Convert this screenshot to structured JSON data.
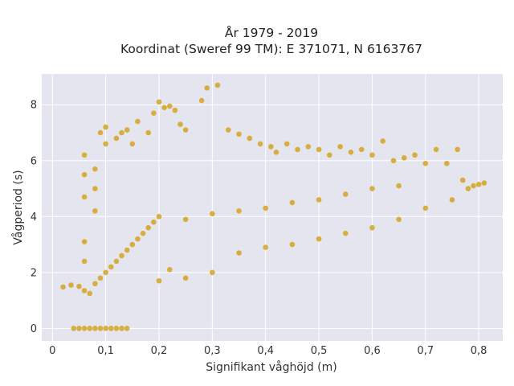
{
  "chart_data": {
    "type": "scatter",
    "title": "År 1979 - 2019",
    "subtitle": "Koordinat (Sweref 99 TM): E 371071, N 6163767",
    "xlabel": "Signifikant våghöjd (m)",
    "ylabel": "Vågperiod (s)",
    "xlim": [
      -0.02,
      0.845
    ],
    "ylim": [
      -0.45,
      9.1
    ],
    "x_ticks": [
      0,
      0.1,
      0.2,
      0.3,
      0.4,
      0.5,
      0.6,
      0.7,
      0.8
    ],
    "x_tick_labels": [
      "0",
      "0,1",
      "0,2",
      "0,3",
      "0,4",
      "0,5",
      "0,6",
      "0,7",
      "0,8"
    ],
    "y_ticks": [
      0,
      2,
      4,
      6,
      8
    ],
    "y_tick_labels": [
      "0",
      "2",
      "4",
      "6",
      "8"
    ],
    "grid": true,
    "background": "#e5e5f0",
    "marker_color": "#d4a520",
    "series": [
      {
        "points": [
          [
            0.02,
            1.48
          ],
          [
            0.035,
            1.55
          ],
          [
            0.05,
            1.5
          ],
          [
            0.06,
            1.35
          ],
          [
            0.07,
            1.25
          ],
          [
            0.08,
            1.6
          ],
          [
            0.09,
            1.8
          ],
          [
            0.1,
            2.0
          ],
          [
            0.11,
            2.2
          ],
          [
            0.12,
            2.4
          ],
          [
            0.13,
            2.6
          ],
          [
            0.14,
            2.8
          ],
          [
            0.15,
            3.0
          ],
          [
            0.16,
            3.2
          ],
          [
            0.17,
            3.4
          ],
          [
            0.18,
            3.6
          ],
          [
            0.19,
            3.8
          ],
          [
            0.2,
            4.0
          ],
          [
            0.05,
            0.0
          ],
          [
            0.06,
            0.0
          ],
          [
            0.07,
            0.0
          ],
          [
            0.08,
            0.0
          ],
          [
            0.09,
            0.0
          ],
          [
            0.1,
            0.0
          ],
          [
            0.11,
            0.0
          ],
          [
            0.12,
            0.0
          ],
          [
            0.13,
            0.0
          ],
          [
            0.14,
            0.0
          ],
          [
            0.04,
            0.0
          ],
          [
            0.06,
            2.4
          ],
          [
            0.06,
            3.1
          ],
          [
            0.06,
            4.7
          ],
          [
            0.06,
            5.5
          ],
          [
            0.06,
            6.2
          ],
          [
            0.08,
            4.2
          ],
          [
            0.08,
            5.0
          ],
          [
            0.08,
            5.7
          ],
          [
            0.09,
            7.0
          ],
          [
            0.1,
            7.2
          ],
          [
            0.1,
            6.6
          ],
          [
            0.12,
            6.8
          ],
          [
            0.13,
            7.0
          ],
          [
            0.14,
            7.1
          ],
          [
            0.15,
            6.6
          ],
          [
            0.16,
            7.4
          ],
          [
            0.18,
            7.0
          ],
          [
            0.19,
            7.7
          ],
          [
            0.2,
            8.1
          ],
          [
            0.21,
            7.9
          ],
          [
            0.22,
            7.95
          ],
          [
            0.23,
            7.8
          ],
          [
            0.24,
            7.3
          ],
          [
            0.25,
            7.1
          ],
          [
            0.28,
            8.15
          ],
          [
            0.29,
            8.6
          ],
          [
            0.31,
            8.7
          ],
          [
            0.33,
            7.1
          ],
          [
            0.35,
            6.95
          ],
          [
            0.37,
            6.8
          ],
          [
            0.39,
            6.6
          ],
          [
            0.41,
            6.5
          ],
          [
            0.42,
            6.3
          ],
          [
            0.44,
            6.6
          ],
          [
            0.46,
            6.4
          ],
          [
            0.48,
            6.5
          ],
          [
            0.5,
            6.4
          ],
          [
            0.52,
            6.2
          ],
          [
            0.54,
            6.5
          ],
          [
            0.56,
            6.3
          ],
          [
            0.58,
            6.4
          ],
          [
            0.6,
            6.2
          ],
          [
            0.62,
            6.7
          ],
          [
            0.64,
            6.0
          ],
          [
            0.66,
            6.1
          ],
          [
            0.68,
            6.2
          ],
          [
            0.7,
            5.9
          ],
          [
            0.72,
            6.4
          ],
          [
            0.74,
            5.9
          ],
          [
            0.76,
            6.4
          ],
          [
            0.77,
            5.3
          ],
          [
            0.78,
            5.0
          ],
          [
            0.79,
            5.1
          ],
          [
            0.8,
            5.15
          ],
          [
            0.81,
            5.2
          ],
          [
            0.25,
            3.9
          ],
          [
            0.3,
            4.1
          ],
          [
            0.35,
            4.2
          ],
          [
            0.4,
            4.3
          ],
          [
            0.45,
            4.5
          ],
          [
            0.5,
            4.6
          ],
          [
            0.55,
            4.8
          ],
          [
            0.6,
            5.0
          ],
          [
            0.65,
            5.1
          ],
          [
            0.3,
            2.0
          ],
          [
            0.35,
            2.7
          ],
          [
            0.4,
            2.9
          ],
          [
            0.45,
            3.0
          ],
          [
            0.5,
            3.2
          ],
          [
            0.55,
            3.4
          ],
          [
            0.6,
            3.6
          ],
          [
            0.65,
            3.9
          ],
          [
            0.7,
            4.3
          ],
          [
            0.75,
            4.6
          ],
          [
            0.2,
            1.7
          ],
          [
            0.25,
            1.8
          ],
          [
            0.22,
            2.1
          ]
        ]
      }
    ]
  }
}
